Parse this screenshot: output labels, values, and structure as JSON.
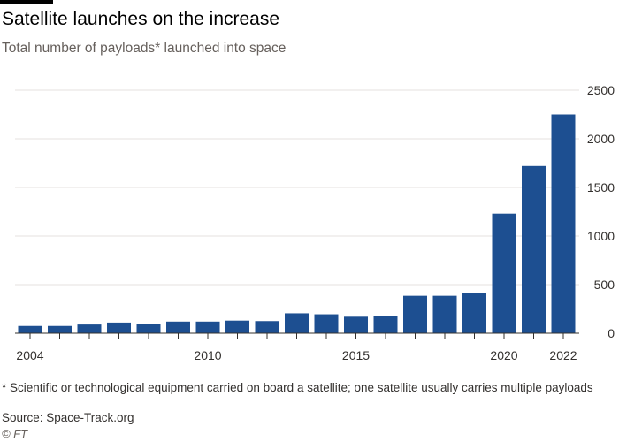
{
  "chart_data": {
    "type": "bar",
    "title": "Satellite launches on the increase",
    "subtitle": "Total number of payloads* launched into space",
    "xlabel": "",
    "ylabel": "",
    "categories": [
      "2004",
      "2005",
      "2006",
      "2007",
      "2008",
      "2009",
      "2010",
      "2011",
      "2012",
      "2013",
      "2014",
      "2015",
      "2016",
      "2017",
      "2018",
      "2019",
      "2020",
      "2021",
      "2022"
    ],
    "x_tick_labels": [
      "2004",
      "2010",
      "2015",
      "2020",
      "2022"
    ],
    "values": [
      75,
      75,
      90,
      110,
      100,
      120,
      120,
      130,
      125,
      205,
      195,
      170,
      175,
      385,
      385,
      415,
      1230,
      1720,
      2250
    ],
    "y_ticks": [
      "0",
      "500",
      "1000",
      "1500",
      "2000",
      "2500"
    ],
    "ylim": [
      0,
      2500
    ],
    "grid": true,
    "y_axis_side": "right",
    "bar_color": "#1d4f91",
    "legend": null
  },
  "footnote": "* Scientific or technological equipment carried on board a satellite; one satellite usually carries multiple payloads",
  "source": "Source: Space-Track.org",
  "credit": "© FT",
  "colors": {
    "background": "#ffffff",
    "grid": "#e6e2df",
    "axis": "#33302e",
    "text": "#33302e",
    "muted": "#66605c"
  }
}
